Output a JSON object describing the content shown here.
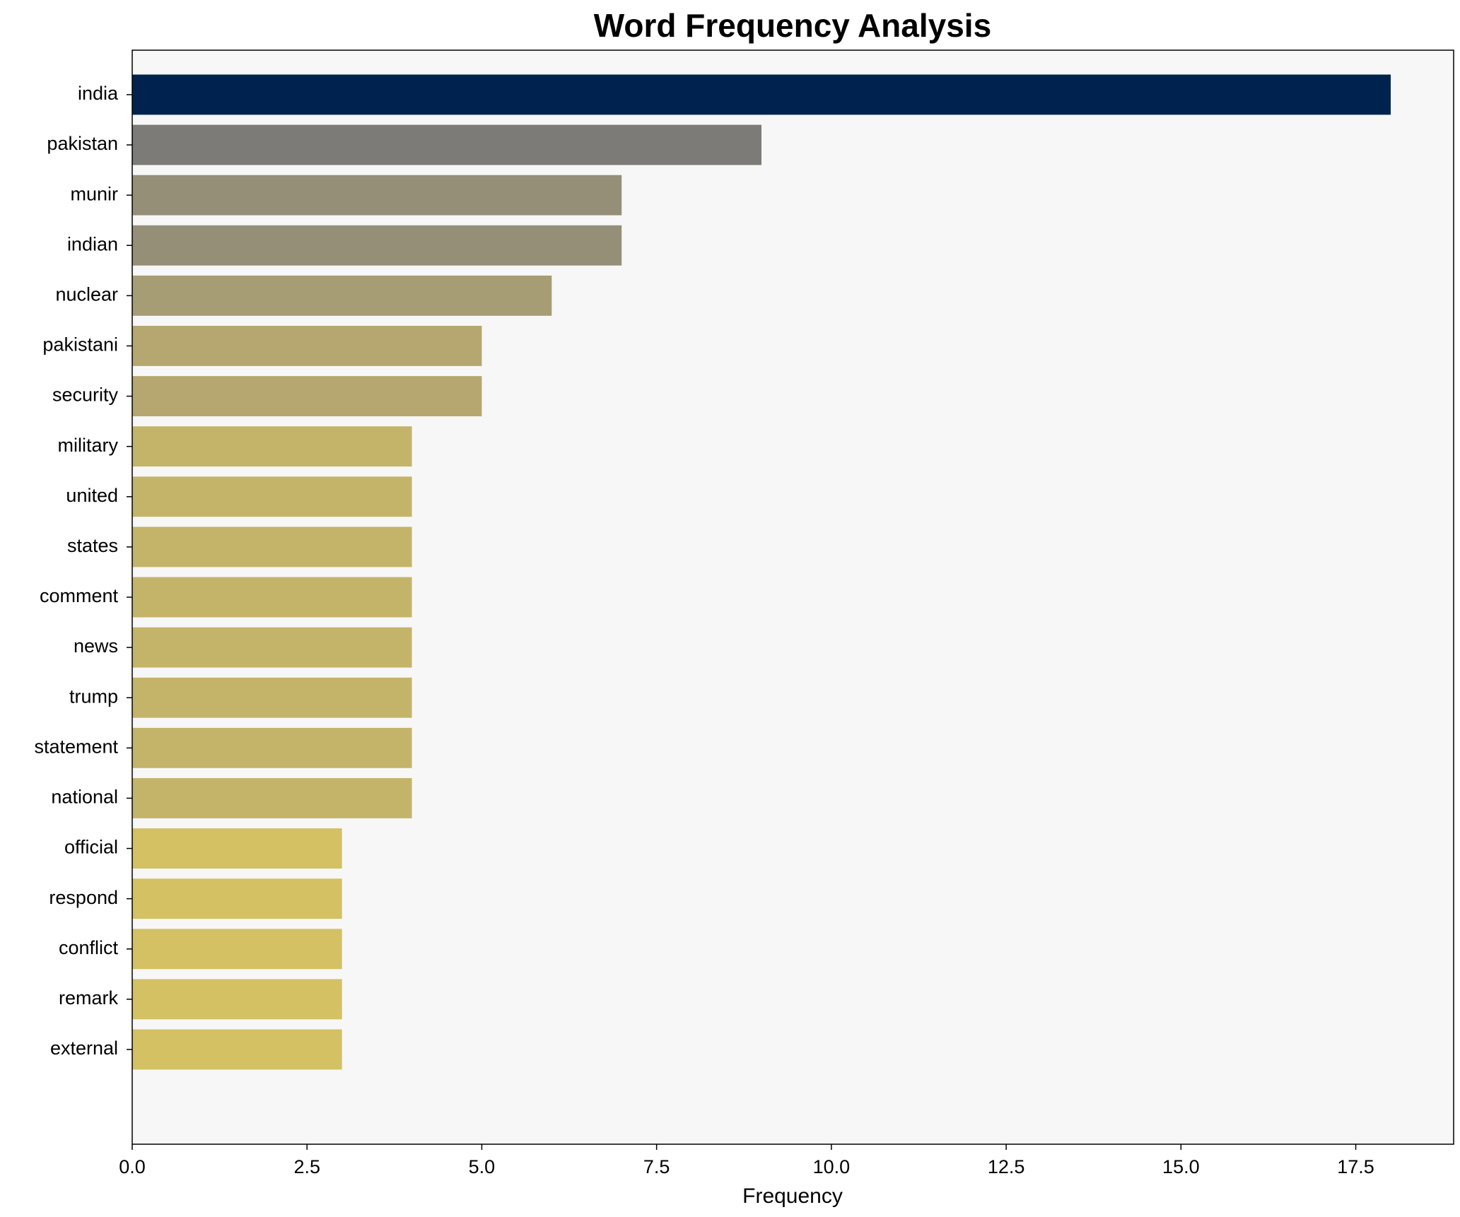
{
  "chart_data": {
    "type": "barh",
    "title": "Word Frequency Analysis",
    "x_label": "Frequency",
    "categories": [
      "india",
      "pakistan",
      "munir",
      "indian",
      "nuclear",
      "pakistani",
      "security",
      "military",
      "united",
      "states",
      "comment",
      "news",
      "trump",
      "statement",
      "national",
      "official",
      "respond",
      "conflict",
      "remark",
      "external"
    ],
    "values": [
      18,
      9,
      7,
      7,
      6,
      5,
      5,
      4,
      4,
      4,
      4,
      4,
      4,
      4,
      4,
      3,
      3,
      3,
      3,
      3
    ],
    "colors": [
      "#00224e",
      "#7c7b78",
      "#958f78",
      "#958f78",
      "#a69d75",
      "#b5a76f",
      "#b5a76f",
      "#c4b46a",
      "#c4b46a",
      "#c4b46a",
      "#c4b46a",
      "#c4b46a",
      "#c4b46a",
      "#c4b46a",
      "#c4b46a",
      "#d3c163",
      "#d3c163",
      "#d3c163",
      "#d3c163",
      "#d3c163"
    ],
    "xlim": [
      0,
      18.9
    ],
    "xticks": [
      {
        "value": 0,
        "label": "0.0"
      },
      2.5,
      {
        "value": 5,
        "label": "5.0"
      },
      7.5,
      {
        "value": 10,
        "label": "10.0"
      },
      12.5,
      {
        "value": 15,
        "label": "15.0"
      },
      17.5
    ],
    "background": "#f7f7f7"
  }
}
